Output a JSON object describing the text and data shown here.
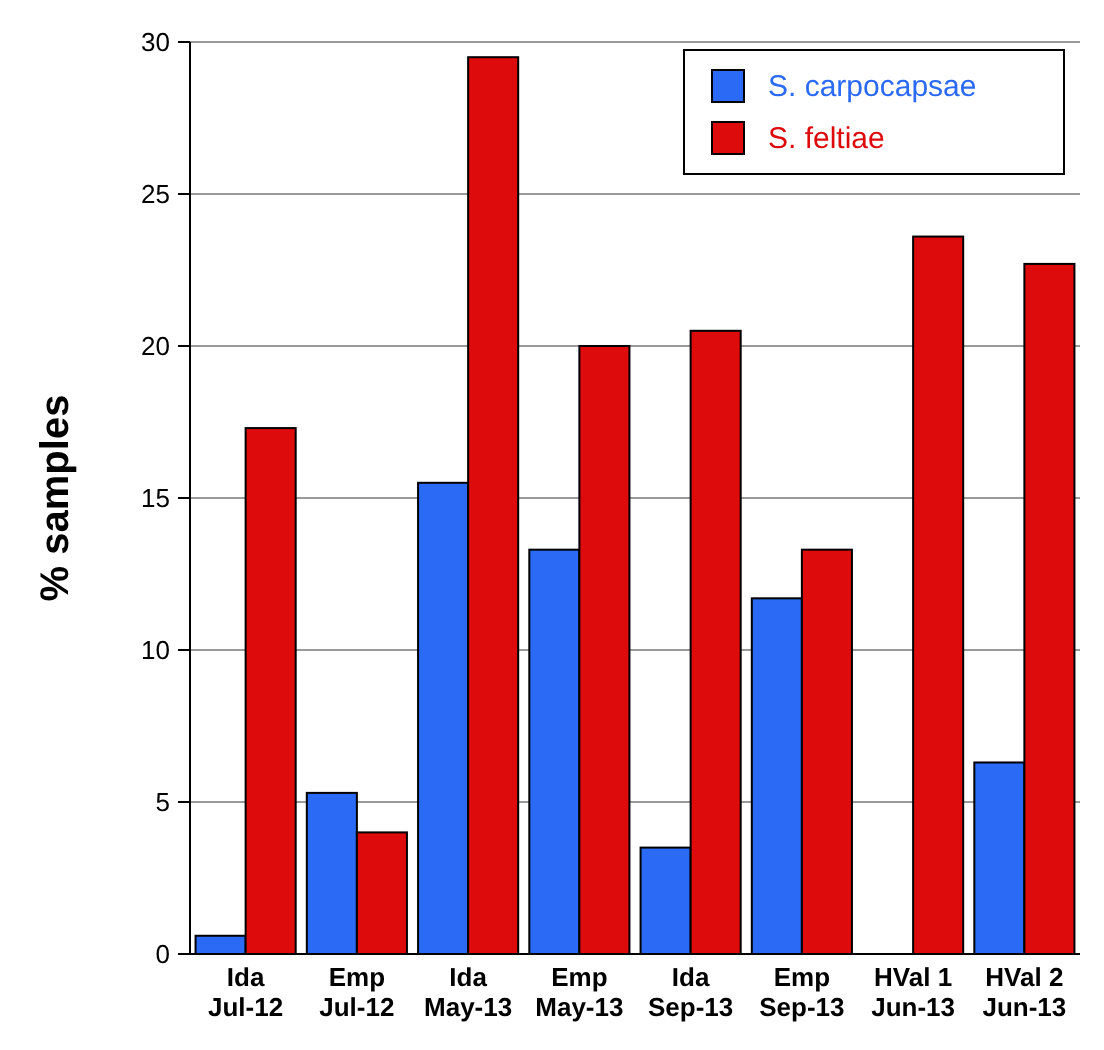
{
  "chart_data": {
    "type": "bar",
    "ylabel": "% samples",
    "categories": [
      "Ida\nJul-12",
      "Emp\nJul-12",
      "Ida\nMay-13",
      "Emp\nMay-13",
      "Ida\nSep-13",
      "Emp\nSep-13",
      "HVal 1\nJun-13",
      "HVal 2\nJun-13"
    ],
    "series": [
      {
        "name": "S. carpocapsae",
        "color": "#2a6af5",
        "values": [
          0.6,
          5.3,
          15.5,
          13.3,
          3.5,
          11.7,
          0,
          6.3
        ]
      },
      {
        "name": "S. feltiae",
        "color": "#dd0b0b",
        "values": [
          17.3,
          4.0,
          29.5,
          20.0,
          20.5,
          13.3,
          23.6,
          22.7
        ]
      }
    ],
    "ylim": [
      0,
      30
    ],
    "yticks": [
      0,
      5,
      10,
      15,
      20,
      25,
      30
    ],
    "grid": "y",
    "legend": "top right"
  }
}
